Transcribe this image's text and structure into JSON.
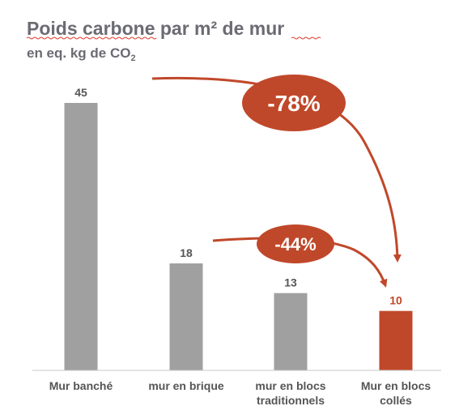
{
  "chart_data": {
    "type": "bar",
    "title": "Poids carbone par m² de mur",
    "subtitle_main": "en eq. kg de CO",
    "subtitle_sub": "2",
    "categories": [
      [
        "Mur banché"
      ],
      [
        "mur en brique"
      ],
      [
        "mur en blocs",
        "traditionnels"
      ],
      [
        "Mur en blocs",
        "collés"
      ]
    ],
    "values": [
      45,
      18,
      13,
      10
    ],
    "value_labels": [
      "45",
      "18",
      "13",
      "10"
    ],
    "highlight_index": 3,
    "ylim": [
      0,
      50
    ],
    "grid": false,
    "annotations": [
      {
        "label": "-78%",
        "from_index": 0,
        "to_index": 3
      },
      {
        "label": "-44%",
        "from_index": 1,
        "to_index": 3
      }
    ]
  },
  "colors": {
    "bar": "#a0a0a0",
    "highlight": "#c0482a",
    "title": "#6b6b73",
    "value_label": "#555555",
    "category_label": "#555555",
    "axis": "#c9c9c9",
    "squiggle": "#e23b2f"
  }
}
